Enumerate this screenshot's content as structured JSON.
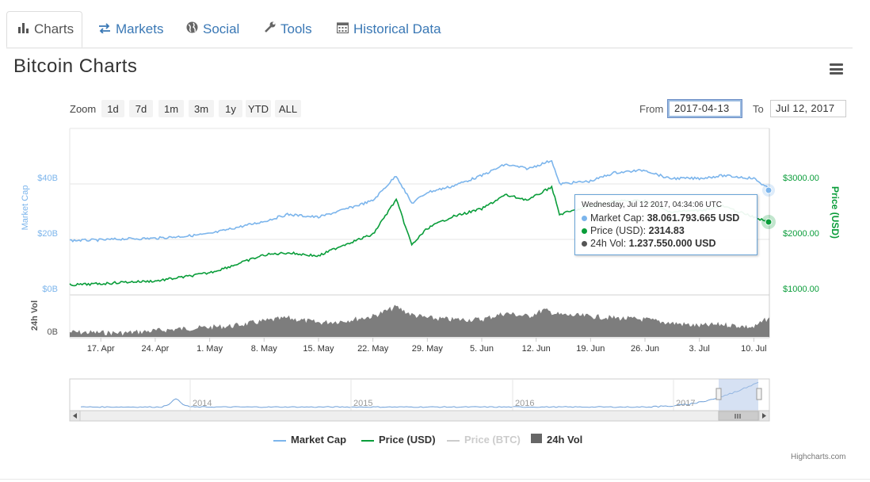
{
  "tabs": [
    {
      "label": "Charts",
      "icon": "bar-chart-icon",
      "active": true
    },
    {
      "label": "Markets",
      "icon": "exchange-arrows-icon",
      "active": false
    },
    {
      "label": "Social",
      "icon": "globe-icon",
      "active": false
    },
    {
      "label": "Tools",
      "icon": "wrench-icon",
      "active": false
    },
    {
      "label": "Historical Data",
      "icon": "calendar-icon",
      "active": false
    }
  ],
  "page_title": "Bitcoin Charts",
  "range_selector": {
    "zoom_label": "Zoom",
    "buttons": [
      "1d",
      "7d",
      "1m",
      "3m",
      "1y",
      "YTD",
      "ALL"
    ],
    "from_label": "From",
    "from_value": "2017-04-13",
    "to_label": "To",
    "to_value": "Jul 12, 2017"
  },
  "tooltip": {
    "date": "Wednesday, Jul 12 2017, 04:34:06 UTC",
    "rows": [
      {
        "label": "Market Cap",
        "value": "38.061.793.665 USD",
        "color": "#7cb5ec"
      },
      {
        "label": "Price (USD)",
        "value": "2314.83",
        "color": "#0a9d3a"
      },
      {
        "label": "24h Vol",
        "value": "1.237.550.000 USD",
        "color": "#555555"
      }
    ]
  },
  "legend": [
    {
      "label": "Market Cap",
      "color": "#7cb5ec",
      "symbol": "line",
      "visible": true
    },
    {
      "label": "Price (USD)",
      "color": "#0a9d3a",
      "symbol": "line",
      "visible": true
    },
    {
      "label": "Price (BTC)",
      "color": "#cccccc",
      "symbol": "line",
      "visible": false
    },
    {
      "label": "24h Vol",
      "color": "#666666",
      "symbol": "square",
      "visible": true
    }
  ],
  "credits": "Highcharts.com",
  "colors": {
    "market_cap": "#7cb5ec",
    "price_usd": "#0a9d3a",
    "volume": "#666666",
    "link": "#3a78b5"
  },
  "chart_data": {
    "type": "line",
    "grid": true,
    "x_axis": {
      "tick_labels": [
        "17. Apr",
        "24. Apr",
        "1. May",
        "8. May",
        "15. May",
        "22. May",
        "29. May",
        "5. Jun",
        "12. Jun",
        "19. Jun",
        "26. Jun",
        "3. Jul",
        "10. Jul"
      ],
      "range": [
        "2017-04-13",
        "2017-07-12"
      ]
    },
    "y_axes": {
      "market_cap": {
        "title": "Market Cap",
        "ticks": [
          "$0B",
          "$20B",
          "$40B"
        ],
        "range": [
          0,
          40
        ]
      },
      "price_usd": {
        "title": "Price (USD)",
        "ticks": [
          "$1000.00",
          "$2000.00",
          "$3000.00"
        ],
        "range": [
          1000,
          3000
        ]
      },
      "volume": {
        "title": "24h Vol",
        "ticks": [
          "0B"
        ]
      }
    },
    "series": [
      {
        "name": "Market Cap",
        "unit": "USD billions",
        "x": [
          "2017-04-13",
          "2017-04-17",
          "2017-04-20",
          "2017-04-24",
          "2017-04-28",
          "2017-05-01",
          "2017-05-04",
          "2017-05-08",
          "2017-05-11",
          "2017-05-15",
          "2017-05-18",
          "2017-05-22",
          "2017-05-25",
          "2017-05-27",
          "2017-05-29",
          "2017-06-01",
          "2017-06-05",
          "2017-06-08",
          "2017-06-11",
          "2017-06-14",
          "2017-06-15",
          "2017-06-19",
          "2017-06-22",
          "2017-06-26",
          "2017-06-29",
          "2017-07-03",
          "2017-07-06",
          "2017-07-10",
          "2017-07-12"
        ],
        "values": [
          19.6,
          19.8,
          20.2,
          20.4,
          21.2,
          22.0,
          24.0,
          26.5,
          29.0,
          28.0,
          30.5,
          34.0,
          43.0,
          33.0,
          37.0,
          39.0,
          43.0,
          47.0,
          45.5,
          48.5,
          40.0,
          41.0,
          44.0,
          45.0,
          42.0,
          42.0,
          43.0,
          42.0,
          38.1
        ]
      },
      {
        "name": "Price (USD)",
        "unit": "USD",
        "x": [
          "2017-04-13",
          "2017-04-17",
          "2017-04-20",
          "2017-04-24",
          "2017-04-28",
          "2017-05-01",
          "2017-05-04",
          "2017-05-08",
          "2017-05-11",
          "2017-05-15",
          "2017-05-18",
          "2017-05-22",
          "2017-05-25",
          "2017-05-27",
          "2017-05-29",
          "2017-06-01",
          "2017-06-05",
          "2017-06-08",
          "2017-06-11",
          "2017-06-14",
          "2017-06-15",
          "2017-06-19",
          "2017-06-22",
          "2017-06-26",
          "2017-06-29",
          "2017-07-03",
          "2017-07-06",
          "2017-07-10",
          "2017-07-12"
        ],
        "values": [
          1180,
          1200,
          1230,
          1250,
          1330,
          1400,
          1530,
          1720,
          1760,
          1700,
          1890,
          2090,
          2720,
          1900,
          2200,
          2400,
          2550,
          2800,
          2710,
          2950,
          2450,
          2600,
          2690,
          2700,
          2500,
          2520,
          2600,
          2400,
          2314.83
        ]
      },
      {
        "name": "24h Vol",
        "unit": "USD billions",
        "x": [
          "2017-04-13",
          "2017-04-20",
          "2017-04-27",
          "2017-05-04",
          "2017-05-08",
          "2017-05-11",
          "2017-05-15",
          "2017-05-18",
          "2017-05-22",
          "2017-05-25",
          "2017-05-27",
          "2017-05-29",
          "2017-06-01",
          "2017-06-05",
          "2017-06-08",
          "2017-06-11",
          "2017-06-13",
          "2017-06-15",
          "2017-06-19",
          "2017-06-22",
          "2017-06-26",
          "2017-06-29",
          "2017-07-03",
          "2017-07-06",
          "2017-07-10",
          "2017-07-12"
        ],
        "values": [
          0.3,
          0.25,
          0.5,
          0.7,
          1.0,
          1.2,
          0.9,
          1.0,
          1.3,
          1.9,
          1.4,
          1.2,
          1.1,
          1.1,
          1.5,
          1.3,
          1.7,
          1.4,
          1.3,
          1.2,
          1.1,
          0.9,
          0.7,
          0.8,
          0.6,
          1.24
        ]
      }
    ],
    "navigator": {
      "tick_labels": [
        "2014",
        "2015",
        "2016",
        "2017"
      ]
    }
  }
}
